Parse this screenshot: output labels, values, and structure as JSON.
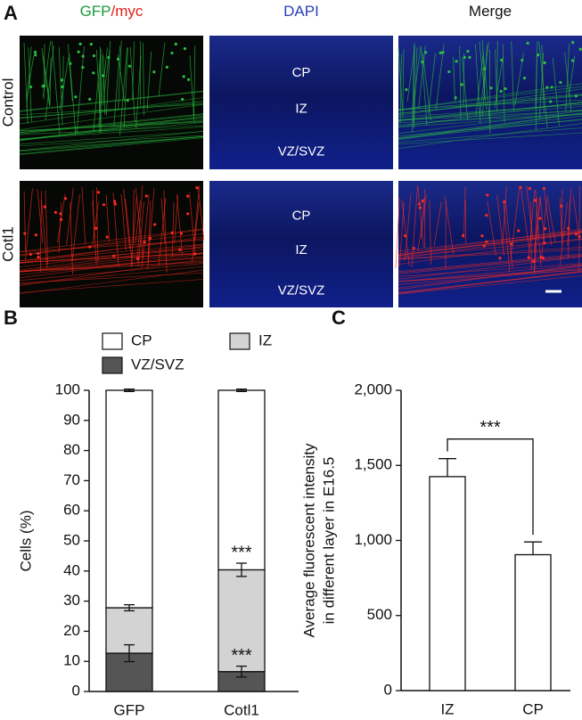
{
  "panel_labels": [
    "A",
    "B",
    "C"
  ],
  "panel_a": {
    "column_titles": [
      [
        {
          "text": "GFP",
          "color": "#1a9a3a"
        },
        {
          "text": "/myc",
          "color": "#e0201a"
        }
      ],
      [
        {
          "text": "DAPI",
          "color": "#2a3fb0"
        }
      ],
      [
        {
          "text": "Merge",
          "color": "#111111"
        }
      ]
    ],
    "row_labels": [
      "Control",
      "Cotl1"
    ],
    "layer_labels": [
      [
        "CP",
        "IZ",
        "VZ/SVZ"
      ],
      [
        "CP",
        "IZ",
        "VZ/SVZ"
      ]
    ]
  },
  "chart_data": [
    {
      "type": "stacked_bar",
      "y_label": "Cells (%)",
      "categories": [
        "GFP",
        "Cotl1"
      ],
      "series": [
        {
          "name": "VZ/SVZ",
          "color": "#555555",
          "values": [
            12.7,
            6.6
          ],
          "errors": [
            2.8,
            1.8
          ],
          "significance": [
            null,
            "***"
          ]
        },
        {
          "name": "IZ",
          "color": "#d3d3d3",
          "values": [
            15.1,
            33.8
          ],
          "errors": [
            1.0,
            2.2
          ],
          "significance": [
            null,
            "***"
          ]
        },
        {
          "name": "CP",
          "color": "#ffffff",
          "values": [
            72.2,
            59.6
          ],
          "errors": [
            0.4,
            0.4
          ]
        }
      ],
      "ylim": [
        0,
        100
      ],
      "yticks": [
        0,
        10,
        20,
        30,
        40,
        50,
        60,
        70,
        80,
        90,
        100
      ]
    },
    {
      "type": "bar",
      "y_label": [
        "Average fluorescent intensity",
        "in different layer in E16.5"
      ],
      "categories": [
        "IZ",
        "CP"
      ],
      "values": [
        1425,
        905
      ],
      "errors": [
        120,
        85
      ],
      "color": "#ffffff",
      "comparison": {
        "between": [
          0,
          1
        ],
        "label": "***"
      },
      "ylim": [
        0,
        2000
      ],
      "yticks": [
        0,
        500,
        {
          "value": 1000,
          "label": "1,000"
        },
        {
          "value": 1500,
          "label": "1,500"
        },
        {
          "value": 2000,
          "label": "2,000"
        }
      ]
    }
  ]
}
